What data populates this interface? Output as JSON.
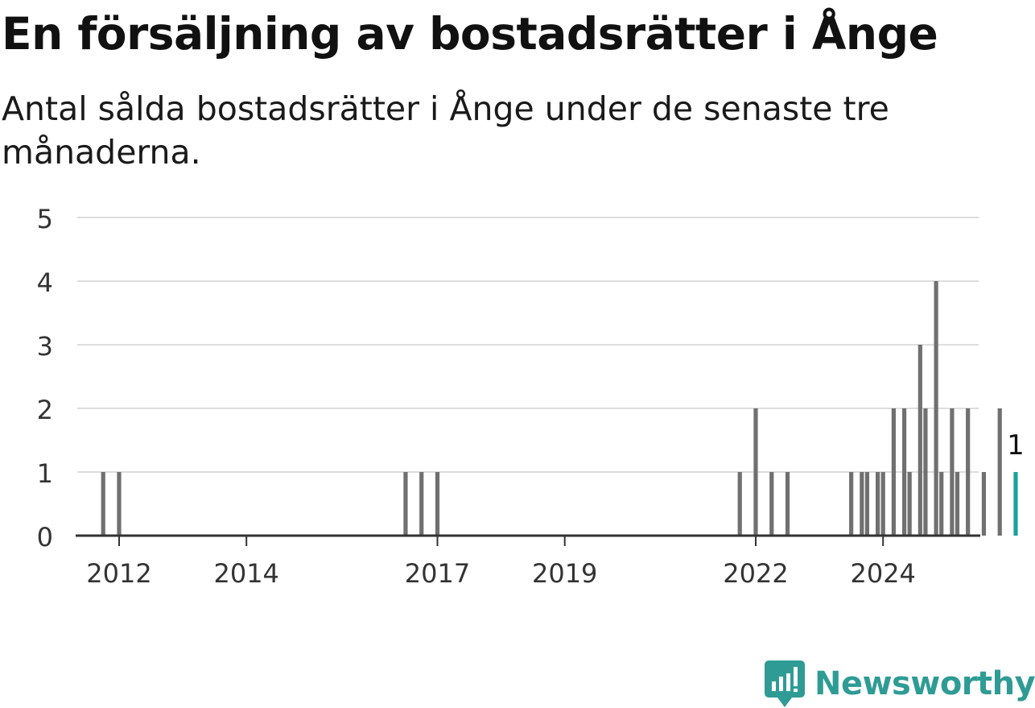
{
  "title": "En försäljning av bostadsrätter i Ånge",
  "subtitle": "Antal sålda bostadsrätter i Ånge under de senaste tre månaderna.",
  "brand": {
    "name": "Newsworthy",
    "icon": "newsworthy-logo-icon"
  },
  "colors": {
    "bar": "#707070",
    "highlight": "#1aa39a",
    "grid": "#dddddd",
    "axis": "#333333",
    "text": "#333333"
  },
  "chart_data": {
    "type": "bar",
    "unit": "quarter",
    "xlabel": "",
    "ylabel": "",
    "ylim": [
      0,
      5
    ],
    "yticks": [
      0,
      1,
      2,
      3,
      4,
      5
    ],
    "xticks": [
      "2012",
      "2014",
      "2017",
      "2019",
      "2022",
      "2024"
    ],
    "xlim": [
      "2011-04",
      "2025-07"
    ],
    "grid": true,
    "legend": "none",
    "highlight_label": "1",
    "values": [
      {
        "x": "2011-10",
        "y": 1
      },
      {
        "x": "2012-01",
        "y": 1
      },
      {
        "x": "2016-07",
        "y": 1
      },
      {
        "x": "2016-10",
        "y": 1
      },
      {
        "x": "2017-01",
        "y": 1
      },
      {
        "x": "2021-10",
        "y": 1
      },
      {
        "x": "2022-01",
        "y": 2
      },
      {
        "x": "2022-04",
        "y": 1
      },
      {
        "x": "2022-07",
        "y": 1
      },
      {
        "x": "2022-10",
        "y": 0
      },
      {
        "x": "2023-01",
        "y": 0
      },
      {
        "x": "2023-04",
        "y": 0
      },
      {
        "x": "2023-07",
        "y": 1
      },
      {
        "x": "2023-10",
        "y": 1
      },
      {
        "x": "2024-01",
        "y": 1
      },
      {
        "x": "2024-04",
        "y": 0
      },
      {
        "x": "2024-07",
        "y": 0
      },
      {
        "x": "2024-10",
        "y": 0
      },
      {
        "x": "2023-09",
        "y": 1
      },
      {
        "x": "2023-12",
        "y": 1
      },
      {
        "x": "2024-03",
        "y": 2
      },
      {
        "x": "2024-06",
        "y": 1
      },
      {
        "x": "2024-09",
        "y": 2
      },
      {
        "x": "2024-12",
        "y": 1
      },
      {
        "x": "2025-03",
        "y": 1
      },
      {
        "x": "2024-05",
        "y": 2
      },
      {
        "x": "2024-08",
        "y": 3
      },
      {
        "x": "2024-11",
        "y": 4
      },
      {
        "x": "2025-02",
        "y": 2
      },
      {
        "x": "2025-05",
        "y": 2
      },
      {
        "x": "2025-08",
        "y": 1
      },
      {
        "x": "2025-11",
        "y": 2
      },
      {
        "x": "2026-02",
        "y": 1,
        "highlight": true
      }
    ]
  }
}
